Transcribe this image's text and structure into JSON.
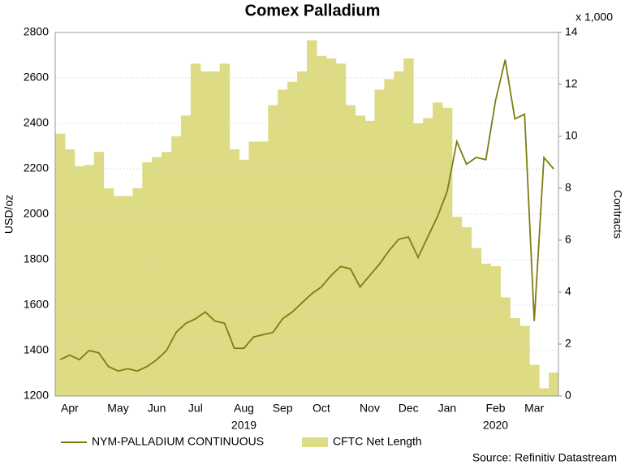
{
  "chart_data": {
    "type": "line-area",
    "title": "Comex Palladium",
    "y_label": "USD/oz",
    "y2_label": "Contracts",
    "y2_multiplier": "x 1,000",
    "source": "Source: Refinitiv Datastream",
    "categories": [
      null,
      "Apr",
      null,
      null,
      null,
      null,
      "May",
      null,
      null,
      null,
      "Jun",
      null,
      null,
      null,
      "Jul",
      null,
      null,
      null,
      null,
      "Aug",
      null,
      null,
      null,
      "Sep",
      null,
      null,
      null,
      "Oct",
      null,
      null,
      null,
      null,
      "Nov",
      null,
      null,
      null,
      "Dec",
      null,
      null,
      null,
      "Jan",
      null,
      null,
      null,
      null,
      "Feb",
      null,
      null,
      null,
      "Mar",
      null,
      null
    ],
    "years": [
      "2019",
      "2020"
    ],
    "ylim": [
      1200,
      2800
    ],
    "yticks": [
      1200,
      1400,
      1600,
      1800,
      2000,
      2200,
      2400,
      2600,
      2800
    ],
    "y2lim": [
      0,
      14
    ],
    "y2ticks": [
      0,
      2,
      4,
      6,
      8,
      10,
      12,
      14
    ],
    "grid": true,
    "series": [
      {
        "name": "NYM-PALLADIUM CONTINUOUS",
        "type": "line",
        "color": "#7d7d12",
        "values": [
          1360,
          1380,
          1360,
          1400,
          1390,
          1330,
          1310,
          1320,
          1310,
          1330,
          1360,
          1400,
          1480,
          1520,
          1540,
          1570,
          1530,
          1520,
          1410,
          1410,
          1460,
          1470,
          1480,
          1540,
          1570,
          1610,
          1650,
          1680,
          1730,
          1770,
          1760,
          1680,
          1730,
          1780,
          1840,
          1890,
          1900,
          1810,
          1900,
          1990,
          2100,
          2320,
          2220,
          2250,
          2240,
          2500,
          2680,
          2420,
          2440,
          1530,
          2250,
          2200
        ]
      },
      {
        "name": "CFTC Net Length",
        "type": "area",
        "axis": "y2",
        "color": "#dedb85",
        "values": [
          10.1,
          9.5,
          8.85,
          8.9,
          9.4,
          8.0,
          7.7,
          7.7,
          8.0,
          9.0,
          9.2,
          9.4,
          10.0,
          10.8,
          12.8,
          12.5,
          12.5,
          12.8,
          9.5,
          9.1,
          9.8,
          9.8,
          11.2,
          11.8,
          12.1,
          12.5,
          13.7,
          13.1,
          13.0,
          12.8,
          11.2,
          10.8,
          10.6,
          11.8,
          12.2,
          12.5,
          13.0,
          10.5,
          10.7,
          11.3,
          11.1,
          6.9,
          6.5,
          5.7,
          5.1,
          5.0,
          3.8,
          3.0,
          2.7,
          1.2,
          0.3,
          0.9
        ]
      }
    ]
  }
}
